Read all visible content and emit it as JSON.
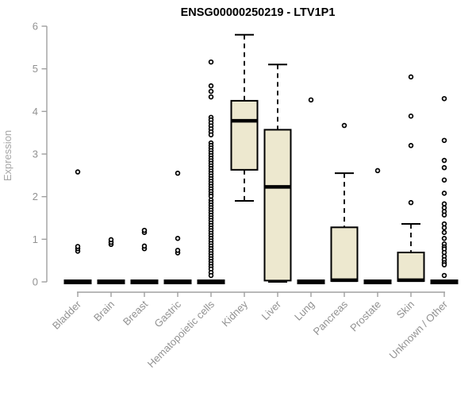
{
  "chart_data": {
    "type": "boxplot",
    "title": "ENSG00000250219 - LTV1P1",
    "xlabel": "",
    "ylabel": "Expression",
    "ylim": [
      0,
      6
    ],
    "yticks": [
      0,
      1,
      2,
      3,
      4,
      5,
      6
    ],
    "grid": false,
    "legend": false,
    "categories": [
      "Bladder",
      "Brain",
      "Breast",
      "Gastric",
      "Hematopoietic cells",
      "Kidney",
      "Liver",
      "Lung",
      "Pancreas",
      "Prostate",
      "Skin",
      "Unknown / Other"
    ],
    "series": [
      {
        "name": "Bladder",
        "whisker_low": 0,
        "q1": 0,
        "median": 0,
        "q3": 0,
        "whisker_high": 0,
        "outliers": [
          0.72,
          0.78,
          0.83,
          2.58
        ]
      },
      {
        "name": "Brain",
        "whisker_low": 0,
        "q1": 0,
        "median": 0,
        "q3": 0,
        "whisker_high": 0,
        "outliers": [
          0.88,
          0.93,
          0.99
        ]
      },
      {
        "name": "Breast",
        "whisker_low": 0,
        "q1": 0,
        "median": 0,
        "q3": 0,
        "whisker_high": 0,
        "outliers": [
          0.78,
          0.84,
          1.16,
          1.21
        ]
      },
      {
        "name": "Gastric",
        "whisker_low": 0,
        "q1": 0,
        "median": 0,
        "q3": 0,
        "whisker_high": 0,
        "outliers": [
          0.68,
          0.74,
          1.02,
          2.55
        ]
      },
      {
        "name": "Hematopoietic cells",
        "whisker_low": 0,
        "q1": 0,
        "median": 0,
        "q3": 0,
        "whisker_high": 0,
        "outliers": [
          5.16,
          4.6,
          4.47,
          4.34,
          3.86,
          3.8,
          3.73,
          3.66,
          3.59,
          3.52,
          3.45,
          3.26,
          3.2,
          3.14,
          3.08,
          3.02,
          2.96,
          2.9,
          2.84,
          2.78,
          2.72,
          2.66,
          2.6,
          2.54,
          2.48,
          2.42,
          2.36,
          2.3,
          2.24,
          2.18,
          2.12,
          2.06,
          2.01,
          1.92,
          1.86,
          1.8,
          1.74,
          1.68,
          1.62,
          1.56,
          1.5,
          1.44,
          1.38,
          1.32,
          1.26,
          1.2,
          1.14,
          1.08,
          1.02,
          0.96,
          0.9,
          0.84,
          0.78,
          0.72,
          0.66,
          0.6,
          0.54,
          0.48,
          0.42,
          0.36,
          0.3,
          0.22,
          0.15
        ]
      },
      {
        "name": "Kidney",
        "whisker_low": 1.9,
        "q1": 2.63,
        "median": 3.78,
        "q3": 4.25,
        "whisker_high": 5.8,
        "outliers": []
      },
      {
        "name": "Liver",
        "whisker_low": 0,
        "q1": 0.03,
        "median": 2.23,
        "q3": 3.57,
        "whisker_high": 5.1,
        "outliers": []
      },
      {
        "name": "Lung",
        "whisker_low": 0,
        "q1": 0,
        "median": 0,
        "q3": 0,
        "whisker_high": 0,
        "outliers": [
          4.27
        ]
      },
      {
        "name": "Pancreas",
        "whisker_low": 0,
        "q1": 0.02,
        "median": 0.04,
        "q3": 1.28,
        "whisker_high": 2.55,
        "outliers": [
          3.67
        ]
      },
      {
        "name": "Prostate",
        "whisker_low": 0,
        "q1": 0,
        "median": 0,
        "q3": 0,
        "whisker_high": 0,
        "outliers": [
          2.61
        ]
      },
      {
        "name": "Skin",
        "whisker_low": 0,
        "q1": 0.02,
        "median": 0.04,
        "q3": 0.69,
        "whisker_high": 1.36,
        "outliers": [
          1.86,
          3.2,
          3.89,
          4.81
        ]
      },
      {
        "name": "Unknown / Other",
        "whisker_low": 0,
        "q1": 0,
        "median": 0,
        "q3": 0,
        "whisker_high": 0,
        "outliers": [
          4.3,
          3.32,
          2.85,
          2.68,
          2.39,
          2.08,
          1.83,
          1.74,
          1.65,
          1.57,
          1.36,
          1.27,
          1.16,
          1.02,
          0.89,
          0.82,
          0.77,
          0.69,
          0.6,
          0.52,
          0.45,
          0.4,
          0.15
        ]
      }
    ],
    "colors": {
      "box_fill": "#ede8cf",
      "box_border": "#000000",
      "median": "#000000",
      "whisker": "#000000",
      "outlier_stroke": "#000000",
      "axis": "#a0a0a0",
      "tick_label": "#929292",
      "category_label": "#929292",
      "ylabel": "#a6a6a6",
      "title": "#000000",
      "background": "#ffffff"
    }
  }
}
